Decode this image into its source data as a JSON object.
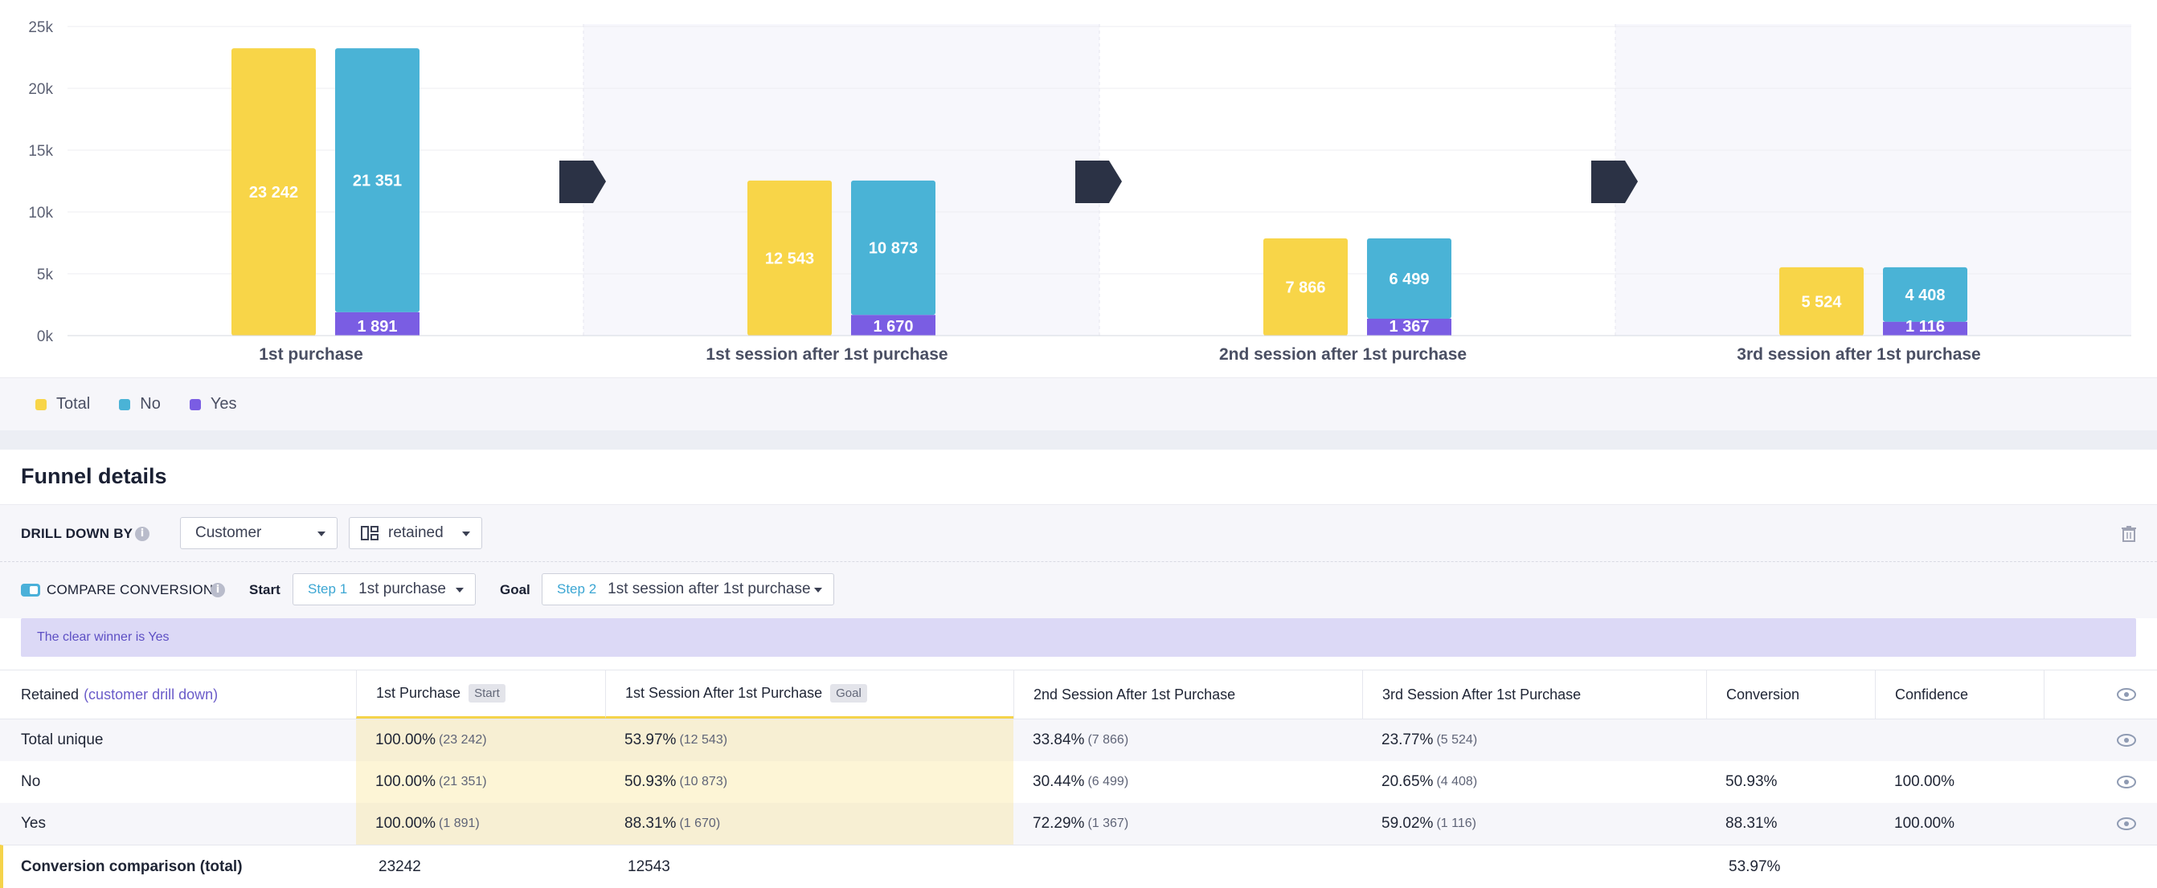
{
  "chart_data": {
    "type": "bar",
    "categories": [
      "1st purchase",
      "1st session after 1st purchase",
      "2nd session after 1st purchase",
      "3rd session after 1st purchase"
    ],
    "series": [
      {
        "name": "Total",
        "values": [
          23242,
          12543,
          7866,
          5524
        ],
        "labels": [
          "23 242",
          "12 543",
          "7 866",
          "5 524"
        ]
      },
      {
        "name": "No",
        "values": [
          21351,
          10873,
          6499,
          4408
        ],
        "labels": [
          "21 351",
          "10 873",
          "6 499",
          "4 408"
        ]
      },
      {
        "name": "Yes",
        "values": [
          1891,
          1670,
          1367,
          1116
        ],
        "labels": [
          "1 891",
          "1 670",
          "1 367",
          "1 116"
        ]
      }
    ],
    "stacked_series": [
      "No",
      "Yes"
    ],
    "ylim": [
      0,
      25000
    ],
    "yticks": [
      0,
      5000,
      10000,
      15000,
      20000,
      25000
    ],
    "ytick_labels": [
      "0k",
      "5k",
      "10k",
      "15k",
      "20k",
      "25k"
    ],
    "legend_position": "bottom-left",
    "grid": true
  },
  "colors": {
    "total": "#f8d548",
    "no": "#4ab3d6",
    "yes": "#7a5de3",
    "arrow": "#2b3245"
  },
  "legend": [
    {
      "label": "Total",
      "color": "#f8d548"
    },
    {
      "label": "No",
      "color": "#4ab3d6"
    },
    {
      "label": "Yes",
      "color": "#7a5de3"
    }
  ],
  "details": {
    "title": "Funnel details",
    "drill_label": "DRILL DOWN BY",
    "drill_select": "Customer",
    "drill_value": "retained",
    "compare_label": "COMPARE CONVERSION",
    "start_label": "Start",
    "start_step": "Step 1",
    "start_value": "1st purchase",
    "goal_label": "Goal",
    "goal_step": "Step 2",
    "goal_value": "1st session after 1st purchase",
    "winner": "The clear winner is Yes"
  },
  "table": {
    "headers": {
      "col0_main": "Retained",
      "col0_sub": "(customer drill down)",
      "col1": "1st Purchase",
      "col1_badge": "Start",
      "col2": "1st Session After 1st Purchase",
      "col2_badge": "Goal",
      "col3": "2nd Session After 1st Purchase",
      "col4": "3rd Session After 1st Purchase",
      "col5": "Conversion",
      "col6": "Confidence"
    },
    "rows": [
      {
        "label": "Total unique",
        "c1": "100.00%",
        "c1s": "(23 242)",
        "c2": "53.97%",
        "c2s": "(12 543)",
        "c3": "33.84%",
        "c3s": "(7 866)",
        "c4": "23.77%",
        "c4s": "(5 524)",
        "c5": "",
        "c6": ""
      },
      {
        "label": "No",
        "c1": "100.00%",
        "c1s": "(21 351)",
        "c2": "50.93%",
        "c2s": "(10 873)",
        "c3": "30.44%",
        "c3s": "(6 499)",
        "c4": "20.65%",
        "c4s": "(4 408)",
        "c5": "50.93%",
        "c6": "100.00%"
      },
      {
        "label": "Yes",
        "c1": "100.00%",
        "c1s": "(1 891)",
        "c2": "88.31%",
        "c2s": "(1 670)",
        "c3": "72.29%",
        "c3s": "(1 367)",
        "c4": "59.02%",
        "c4s": "(1 116)",
        "c5": "88.31%",
        "c6": "100.00%"
      }
    ],
    "footer": {
      "label": "Conversion comparison (total)",
      "c1": "23242",
      "c2": "12543",
      "c5": "53.97%"
    }
  }
}
